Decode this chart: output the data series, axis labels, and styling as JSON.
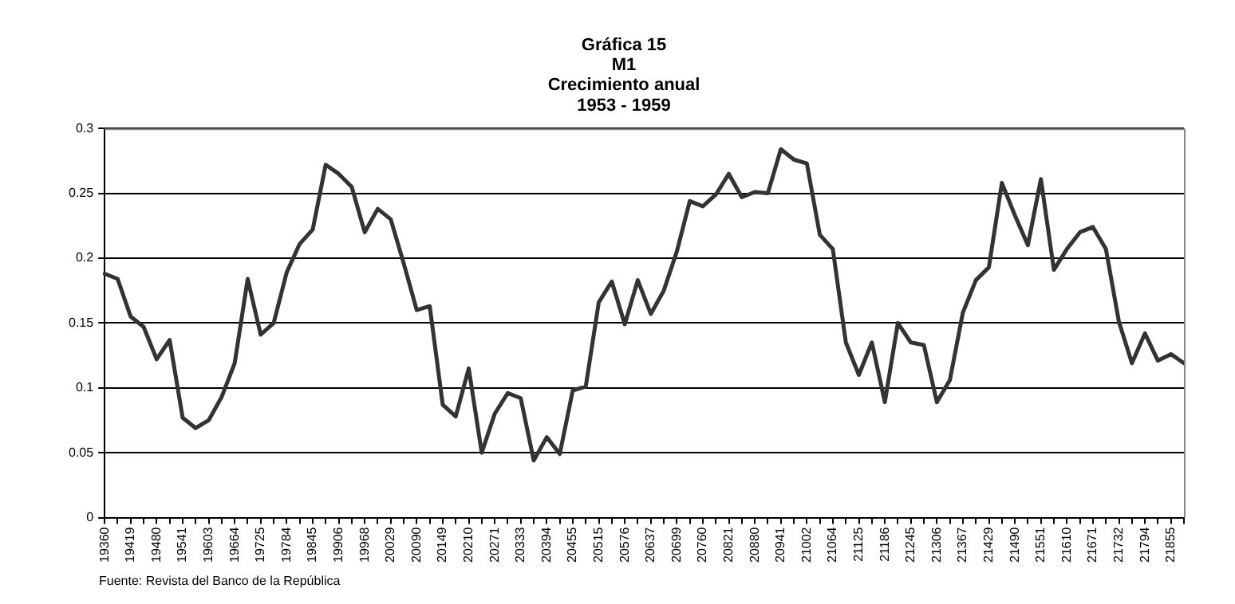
{
  "chart_data": {
    "type": "line",
    "title": "Gráfica 15\nM1\nCrecimiento anual\n1953 - 1959",
    "categories": [
      "19360",
      null,
      "19419",
      null,
      "19480",
      null,
      "19541",
      null,
      "19603",
      null,
      "19664",
      null,
      "19725",
      null,
      "19784",
      null,
      "19845",
      null,
      "19906",
      null,
      "19968",
      null,
      "20029",
      null,
      "20090",
      null,
      "20149",
      null,
      "20210",
      null,
      "20271",
      null,
      "20333",
      null,
      "20394",
      null,
      "20455",
      null,
      "20515",
      null,
      "20576",
      null,
      "20637",
      null,
      "20699",
      null,
      "20760",
      null,
      "20821",
      null,
      "20880",
      null,
      "20941",
      null,
      "21002",
      null,
      "21064",
      null,
      "21125",
      null,
      "21186",
      null,
      "21245",
      null,
      "21306",
      null,
      "21367",
      null,
      "21429",
      null,
      "21490",
      null,
      "21551",
      null,
      "21610",
      null,
      "21671",
      null,
      "21732",
      null,
      "21794",
      null,
      "21855",
      null
    ],
    "series": [
      {
        "color": "#333333",
        "values": [
          0.188,
          0.184,
          0.155,
          0.147,
          0.122,
          0.137,
          0.077,
          0.069,
          0.075,
          0.093,
          0.119,
          0.184,
          0.141,
          0.15,
          0.189,
          0.211,
          0.222,
          0.272,
          0.265,
          0.255,
          0.22,
          0.238,
          0.23,
          0.196,
          0.16,
          0.163,
          0.087,
          0.078,
          0.115,
          0.05,
          0.08,
          0.096,
          0.092,
          0.044,
          0.062,
          0.049,
          0.098,
          0.101,
          0.166,
          0.182,
          0.149,
          0.183,
          0.157,
          0.175,
          0.205,
          0.244,
          0.24,
          0.249,
          0.265,
          0.247,
          0.251,
          0.25,
          0.284,
          0.276,
          0.273,
          0.218,
          0.207,
          0.135,
          0.11,
          0.135,
          0.089,
          0.15,
          0.135,
          0.133,
          0.089,
          0.106,
          0.158,
          0.183,
          0.193,
          0.258,
          0.233,
          0.21,
          0.261,
          0.191,
          0.207,
          0.22,
          0.224,
          0.207,
          0.151,
          0.119,
          0.142,
          0.121,
          0.126,
          0.119
        ]
      }
    ],
    "ylim": [
      0,
      0.3
    ],
    "yticks": [
      0,
      0.05,
      0.1,
      0.15,
      0.2,
      0.25,
      0.3
    ],
    "grid": "y",
    "legend": false,
    "marker": "none",
    "line_style": "solid",
    "annotations": [
      "Fuente: Revista del Banco de la República"
    ]
  }
}
